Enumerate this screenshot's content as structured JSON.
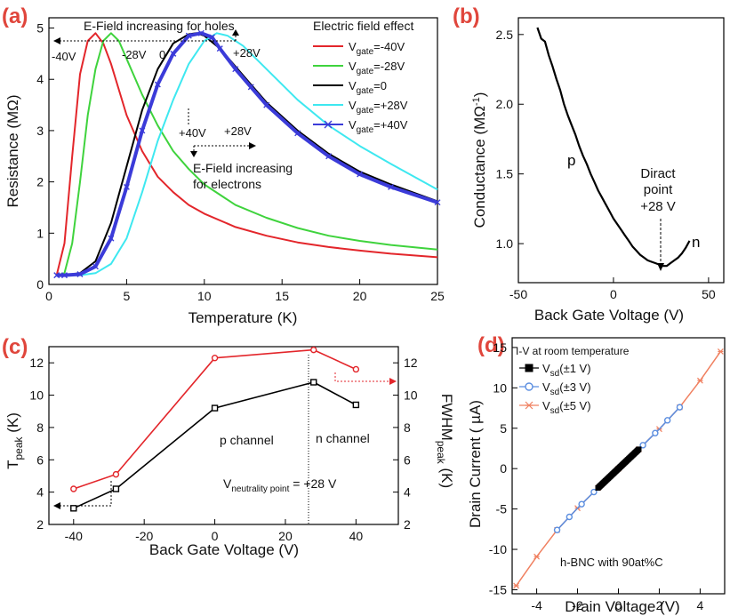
{
  "chart_data": [
    {
      "id": "a",
      "type": "line",
      "panel_label": "(a)",
      "xlabel": "Temperature (K)",
      "ylabel": "Resistance (MΩ)",
      "xlim": [
        0,
        25
      ],
      "ylim": [
        0,
        5.2
      ],
      "xticks": [
        0,
        5,
        10,
        15,
        20,
        25
      ],
      "yticks": [
        0,
        1,
        2,
        3,
        4,
        5
      ],
      "legend_title": "Electric field effect",
      "legend_position": "top-right",
      "annotations": {
        "holes": "E-Field increasing for holes",
        "electrons_1": "E-Field increasing",
        "electrons_2": "for electrons",
        "m40": "-40V",
        "m28": "-28V",
        "zero": "0",
        "p28_top": "+28V",
        "p40": "+40V",
        "p28_bot": "+28V"
      },
      "series": [
        {
          "name": "-40V",
          "legend_main": "V",
          "legend_sub": "gate",
          "legend_val": "=-40V",
          "color": "#e3262b",
          "marker": "none",
          "x": [
            0.5,
            1.0,
            1.5,
            2.0,
            2.5,
            3.0,
            3.5,
            4.0,
            5,
            6,
            7,
            8,
            9,
            10,
            12,
            14,
            16,
            18,
            20,
            22,
            25
          ],
          "y": [
            0.18,
            0.8,
            2.5,
            4.1,
            4.75,
            4.9,
            4.7,
            4.3,
            3.3,
            2.6,
            2.1,
            1.8,
            1.55,
            1.38,
            1.12,
            0.95,
            0.82,
            0.73,
            0.66,
            0.6,
            0.53
          ]
        },
        {
          "name": "-28V",
          "legend_main": "V",
          "legend_sub": "gate",
          "legend_val": "=-28V",
          "color": "#3fd33d",
          "marker": "none",
          "x": [
            0.5,
            1.0,
            1.5,
            2.0,
            2.5,
            3.0,
            3.5,
            4.0,
            4.5,
            5,
            6,
            7,
            8,
            9,
            10,
            12,
            14,
            16,
            18,
            20,
            22,
            25
          ],
          "y": [
            0.18,
            0.22,
            0.8,
            2.0,
            3.3,
            4.2,
            4.75,
            4.9,
            4.75,
            4.4,
            3.7,
            3.1,
            2.6,
            2.25,
            1.95,
            1.55,
            1.3,
            1.1,
            0.95,
            0.85,
            0.77,
            0.68
          ]
        },
        {
          "name": "0",
          "legend_main": "V",
          "legend_sub": "gate",
          "legend_val": "=0",
          "color": "#000000",
          "marker": "none",
          "x": [
            0.5,
            1,
            2,
            3,
            4,
            5,
            6,
            7,
            8,
            9,
            9.5,
            10,
            11,
            12,
            13,
            14,
            16,
            18,
            20,
            22,
            25
          ],
          "y": [
            0.18,
            0.18,
            0.22,
            0.45,
            1.2,
            2.3,
            3.4,
            4.2,
            4.7,
            4.88,
            4.9,
            4.85,
            4.6,
            4.25,
            3.9,
            3.55,
            3.0,
            2.55,
            2.2,
            1.95,
            1.62
          ]
        },
        {
          "name": "+28V",
          "legend_main": "V",
          "legend_sub": "gate",
          "legend_val": "=+28V",
          "color": "#3ee8f0",
          "marker": "none",
          "x": [
            0.5,
            1,
            2,
            3,
            4,
            5,
            6,
            7,
            8,
            9,
            10,
            10.8,
            11.5,
            12.5,
            14,
            16,
            18,
            20,
            22,
            25
          ],
          "y": [
            0.18,
            0.18,
            0.18,
            0.22,
            0.4,
            0.9,
            1.8,
            2.8,
            3.6,
            4.3,
            4.75,
            4.9,
            4.85,
            4.65,
            4.2,
            3.6,
            3.1,
            2.7,
            2.35,
            1.85
          ]
        },
        {
          "name": "+40V",
          "legend_main": "V",
          "legend_sub": "gate",
          "legend_val": "=+40V",
          "color": "#3b3bd9",
          "marker": "x",
          "x": [
            0.5,
            1,
            2,
            3,
            4,
            5,
            6,
            7,
            8,
            9,
            9.8,
            10.5,
            11,
            12,
            13,
            14,
            16,
            18,
            20,
            22,
            25
          ],
          "y": [
            0.18,
            0.18,
            0.2,
            0.35,
            0.9,
            1.9,
            3.0,
            3.9,
            4.5,
            4.85,
            4.9,
            4.82,
            4.6,
            4.2,
            3.85,
            3.5,
            2.95,
            2.5,
            2.15,
            1.9,
            1.6
          ]
        }
      ]
    },
    {
      "id": "b",
      "type": "line",
      "panel_label": "(b)",
      "xlabel": "Back Gate Voltage (V)",
      "ylabel_main": "Conductance (MΩ",
      "ylabel_sup": "-1",
      "ylabel_end": ")",
      "xlim": [
        -50,
        58
      ],
      "ylim": [
        0.72,
        2.62
      ],
      "xticks": [
        -50,
        0,
        50
      ],
      "yticks": [
        1.0,
        1.5,
        2.0,
        2.5
      ],
      "annotations": {
        "p": "p",
        "n": "n",
        "dirac_1": "Diract",
        "dirac_2": "point",
        "dirac_3": "+28 V"
      },
      "series": [
        {
          "color": "#000000",
          "x": [
            -40,
            -38,
            -36,
            -34,
            -32,
            -30,
            -28,
            -26,
            -24,
            -22,
            -20,
            -18,
            -16,
            -14,
            -12,
            -10,
            -8,
            -6,
            -4,
            -2,
            0,
            2,
            4,
            6,
            8,
            10,
            12,
            14,
            16,
            18,
            20,
            22,
            24,
            26,
            28,
            30,
            32,
            34,
            36,
            38,
            40
          ],
          "y": [
            2.55,
            2.47,
            2.45,
            2.35,
            2.27,
            2.18,
            2.1,
            2.0,
            1.92,
            1.85,
            1.78,
            1.7,
            1.63,
            1.57,
            1.5,
            1.44,
            1.38,
            1.33,
            1.28,
            1.23,
            1.18,
            1.14,
            1.1,
            1.06,
            1.02,
            0.98,
            0.95,
            0.92,
            0.9,
            0.88,
            0.87,
            0.86,
            0.85,
            0.84,
            0.84,
            0.86,
            0.88,
            0.9,
            0.93,
            0.97,
            1.02
          ]
        }
      ]
    },
    {
      "id": "c",
      "type": "line",
      "panel_label": "(c)",
      "xlabel": "Back Gate Voltage (V)",
      "ylabel_main": "T",
      "ylabel_sub": "peak",
      "ylabel_end": " (K)",
      "y2label_main": "FWHM",
      "y2label_sub": "peak",
      "y2label_end": " (K)",
      "xlim": [
        -47,
        52
      ],
      "ylim": [
        2,
        13
      ],
      "xticks": [
        -40,
        -20,
        0,
        20,
        40
      ],
      "yticks": [
        2,
        4,
        6,
        8,
        10,
        12
      ],
      "y2ticks": [
        2,
        4,
        6,
        8,
        10,
        12
      ],
      "annotations": {
        "p_channel": "p channel",
        "n_channel": "n channel",
        "neut_main": "V",
        "neut_sub": "neutrality point",
        "neut_val": " = +28 V"
      },
      "series": [
        {
          "color": "#e3262b",
          "marker": "circle",
          "axis": "right",
          "x": [
            -40,
            -28,
            0,
            28,
            40
          ],
          "y": [
            4.2,
            5.1,
            12.3,
            12.8,
            11.6
          ]
        },
        {
          "color": "#000000",
          "marker": "square",
          "axis": "left",
          "x": [
            -40,
            -28,
            0,
            28,
            40
          ],
          "y": [
            3.0,
            4.2,
            9.2,
            10.8,
            9.4
          ]
        }
      ]
    },
    {
      "id": "d",
      "type": "line",
      "panel_label": "(d)",
      "xlabel": "Drain Voltage (V)",
      "ylabel": "Drain Current ( µA)",
      "xlim": [
        -5.2,
        5.2
      ],
      "ylim": [
        -15.5,
        16.2
      ],
      "xticks": [
        -4,
        -2,
        0,
        2,
        4
      ],
      "yticks": [
        -15,
        -10,
        -5,
        0,
        5,
        10,
        15
      ],
      "legend_title": "I-V at room temperature",
      "footer": "h-BNC with 90at%C",
      "series": [
        {
          "legend_main": "V",
          "legend_sub": "sd",
          "legend_val": "(±1 V)",
          "color": "#000000",
          "marker": "square",
          "x": [
            -1,
            1
          ],
          "y": [
            -2.4,
            2.4
          ]
        },
        {
          "legend_main": "V",
          "legend_sub": "sd",
          "legend_val": "(±3 V)",
          "color": "#5b8ee0",
          "marker": "circle",
          "x": [
            -3,
            -2,
            -1,
            0,
            1,
            2,
            3
          ],
          "y": [
            -7.6,
            -4.9,
            -2.4,
            0,
            2.4,
            4.9,
            7.6
          ]
        },
        {
          "legend_main": "V",
          "legend_sub": "sd",
          "legend_val": "(±5 V)",
          "color": "#f08060",
          "marker": "star",
          "x": [
            -5,
            -4,
            -3,
            -2,
            -1,
            0,
            1,
            2,
            3,
            4,
            5
          ],
          "y": [
            -14.5,
            -10.9,
            -7.6,
            -4.9,
            -2.4,
            0,
            2.4,
            4.9,
            7.6,
            10.9,
            14.5
          ]
        }
      ]
    }
  ]
}
